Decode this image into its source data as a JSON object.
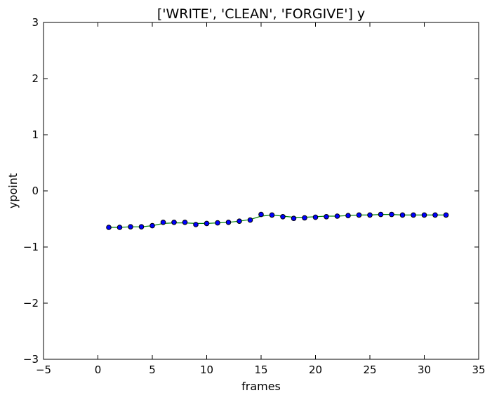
{
  "chart_data": {
    "type": "line",
    "title": "['WRITE', 'CLEAN', 'FORGIVE'] y",
    "xlabel": "frames",
    "ylabel": "ypoint",
    "xlim": [
      -5,
      35
    ],
    "ylim": [
      -3,
      3
    ],
    "xticks": [
      -5,
      0,
      5,
      10,
      15,
      20,
      25,
      30,
      35
    ],
    "yticks": [
      -3,
      -2,
      -1,
      0,
      1,
      2,
      3
    ],
    "xtick_labels": [
      "−5",
      "0",
      "5",
      "10",
      "15",
      "20",
      "25",
      "30",
      "35"
    ],
    "ytick_labels": [
      "−3",
      "−2",
      "−1",
      "0",
      "1",
      "2",
      "3"
    ],
    "grid": false,
    "colors": {
      "line": "#008000",
      "marker_fill": "#0000ff",
      "marker_edge": "#000000"
    },
    "series": [
      {
        "x": [
          1,
          2,
          3,
          4,
          5,
          6,
          7,
          8,
          9,
          10,
          11,
          12,
          13,
          14,
          15,
          16,
          17,
          18,
          19,
          20,
          21,
          22,
          23,
          24,
          25,
          26,
          27,
          28,
          29,
          30,
          31,
          32
        ],
        "points": [
          -0.65,
          -0.65,
          -0.64,
          -0.64,
          -0.62,
          -0.56,
          -0.56,
          -0.56,
          -0.6,
          -0.58,
          -0.57,
          -0.56,
          -0.54,
          -0.52,
          -0.42,
          -0.43,
          -0.46,
          -0.49,
          -0.48,
          -0.47,
          -0.46,
          -0.45,
          -0.44,
          -0.43,
          -0.43,
          -0.42,
          -0.42,
          -0.43,
          -0.43,
          -0.43,
          -0.43,
          -0.43
        ],
        "line": [
          -0.65,
          -0.65,
          -0.64,
          -0.64,
          -0.62,
          -0.58,
          -0.57,
          -0.57,
          -0.58,
          -0.58,
          -0.57,
          -0.56,
          -0.54,
          -0.51,
          -0.45,
          -0.43,
          -0.45,
          -0.47,
          -0.47,
          -0.46,
          -0.45,
          -0.45,
          -0.44,
          -0.43,
          -0.43,
          -0.42,
          -0.42,
          -0.43,
          -0.43,
          -0.43,
          -0.43,
          -0.43
        ]
      }
    ]
  }
}
